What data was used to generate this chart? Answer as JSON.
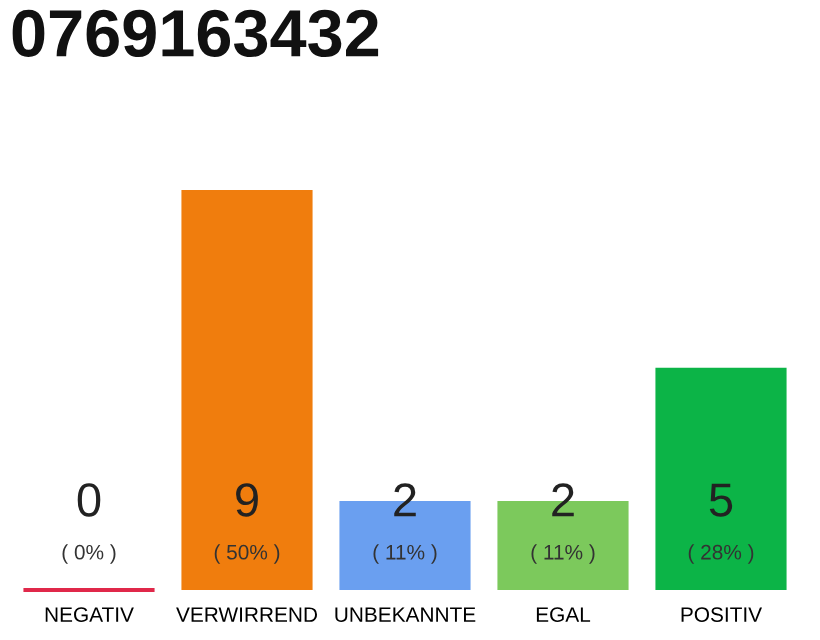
{
  "chart_data": {
    "type": "bar",
    "title": "0769163432",
    "categories": [
      "NEGATIV",
      "VERWIRREND",
      "UNBEKANNTE",
      "EGAL",
      "POSITIV"
    ],
    "values": [
      0,
      9,
      2,
      2,
      5
    ],
    "colors": [
      "#e0284a",
      "#f07d0d",
      "#6a9ff0",
      "#7cc95c",
      "#0cb447"
    ],
    "value_labels": [
      "0",
      "9",
      "2",
      "2",
      "5"
    ],
    "annotations": [
      "( 0% )",
      "( 50% )",
      "( 11% )",
      "( 11% )",
      "( 28% )"
    ],
    "grid": false,
    "legend": false
  }
}
